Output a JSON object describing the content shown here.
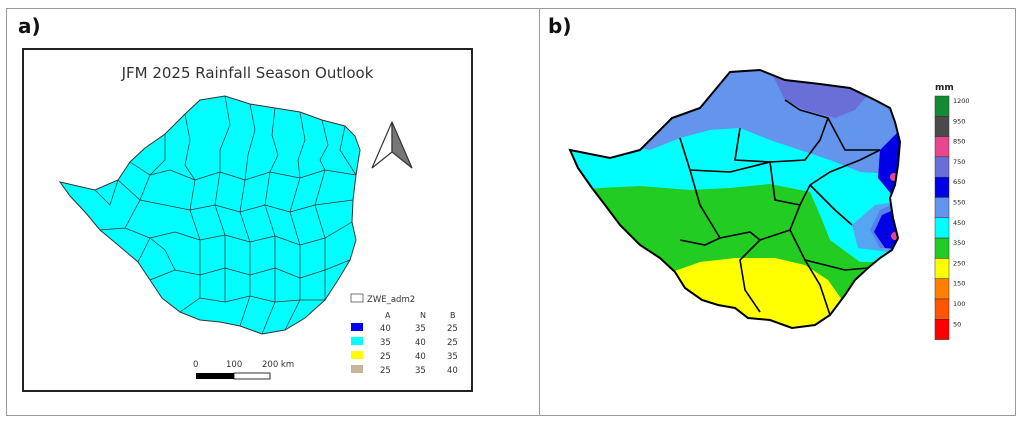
{
  "panel_a": {
    "label": "a)",
    "title": "JFM 2025 Rainfall Season Outlook",
    "legend": {
      "layer_name": "ZWE_adm2",
      "headers": [
        "A",
        "N",
        "B"
      ],
      "rows": [
        {
          "color": "#0000ff",
          "A": "40",
          "N": "35",
          "B": "25"
        },
        {
          "color": "#00ffff",
          "A": "35",
          "N": "40",
          "B": "25"
        },
        {
          "color": "#ffff00",
          "A": "25",
          "N": "40",
          "B": "35"
        },
        {
          "color": "#c8b49b",
          "A": "25",
          "N": "35",
          "B": "40"
        }
      ]
    },
    "scalebar": {
      "labels": [
        "0",
        "100",
        "200 km"
      ]
    },
    "north_arrow_icon": "north-arrow-icon"
  },
  "panel_b": {
    "label": "b)",
    "colorbar": {
      "unit": "mm",
      "items": [
        {
          "label": "1200",
          "color": "#138a36"
        },
        {
          "label": "950",
          "color": "#4a4a4a"
        },
        {
          "label": "850",
          "color": "#e8478e"
        },
        {
          "label": "750",
          "color": "#6a6fd8"
        },
        {
          "label": "650",
          "color": "#0000e6"
        },
        {
          "label": "550",
          "color": "#6495ed"
        },
        {
          "label": "450",
          "color": "#00ffff"
        },
        {
          "label": "350",
          "color": "#22cc22"
        },
        {
          "label": "250",
          "color": "#ffff00"
        },
        {
          "label": "150",
          "color": "#ff7f00"
        },
        {
          "label": "100",
          "color": "#ff5500"
        },
        {
          "label": "50",
          "color": "#ff0000"
        }
      ]
    }
  }
}
